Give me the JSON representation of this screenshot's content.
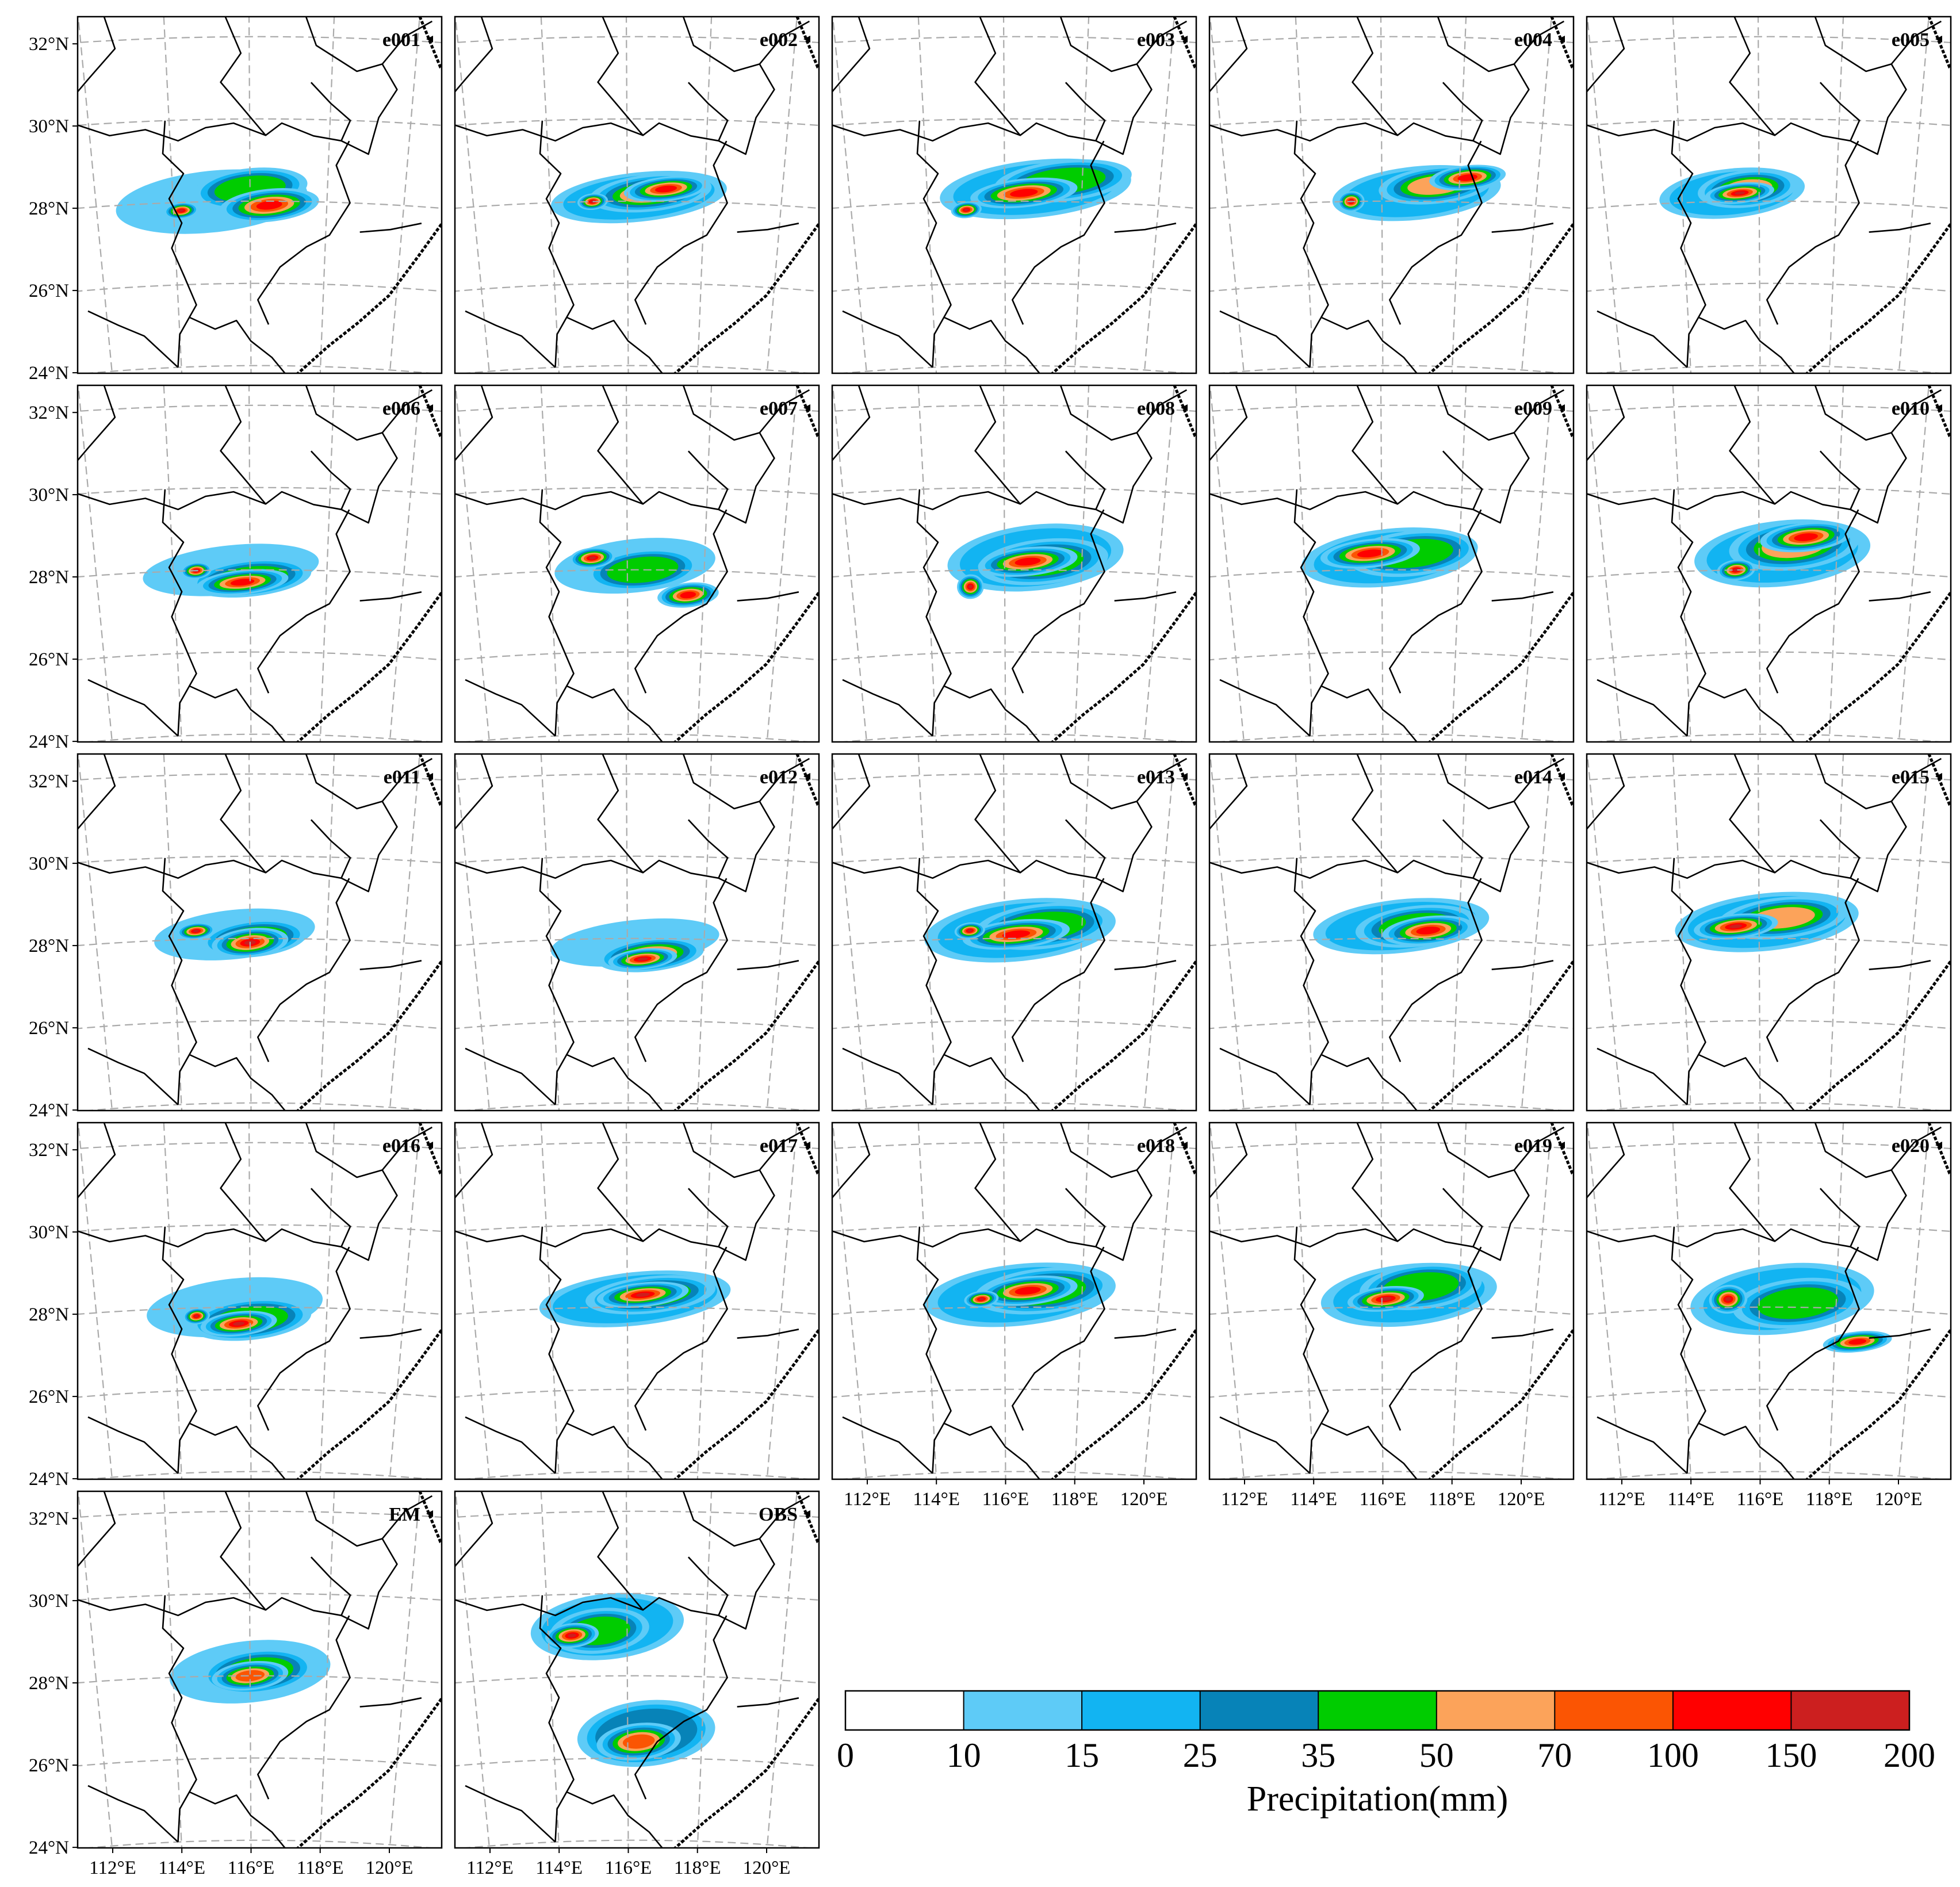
{
  "panels": [
    {
      "label": "e001",
      "blobs": [
        [
          -1,
          0,
          5,
          1.5,
          0.1
        ],
        [
          0,
          0.3,
          3,
          1,
          0.6
        ],
        [
          0.5,
          -0.1,
          2.6,
          0.8,
          1
        ],
        [
          -1.8,
          -0.2,
          0.9,
          0.4,
          1.4
        ]
      ]
    },
    {
      "label": "e002",
      "blobs": [
        [
          0.3,
          0.1,
          4.6,
          1.2,
          0.2
        ],
        [
          0.6,
          0.2,
          3.2,
          0.9,
          0.8
        ],
        [
          1,
          0.3,
          2.2,
          0.6,
          1
        ],
        [
          -0.9,
          0,
          0.8,
          0.4,
          1.3
        ]
      ]
    },
    {
      "label": "e003",
      "blobs": [
        [
          0.8,
          0.3,
          5,
          1.4,
          0.3
        ],
        [
          1.5,
          0.5,
          3.6,
          1,
          0.6
        ],
        [
          0.5,
          0.2,
          2.8,
          0.7,
          1
        ],
        [
          -1,
          -0.2,
          0.8,
          0.4,
          1.4
        ]
      ]
    },
    {
      "label": "e004",
      "blobs": [
        [
          0.9,
          0.2,
          4.4,
          1.3,
          0.2
        ],
        [
          1.4,
          0.4,
          3,
          0.9,
          0.7
        ],
        [
          2.2,
          0.6,
          2,
          0.6,
          1
        ],
        [
          -0.8,
          0,
          0.7,
          0.5,
          1.4
        ]
      ]
    },
    {
      "label": "e005",
      "blobs": [
        [
          -0.7,
          0.2,
          3.8,
          1.2,
          0.2
        ],
        [
          -0.3,
          0.3,
          2.6,
          0.9,
          0.7
        ],
        [
          -0.5,
          0.2,
          1.8,
          0.5,
          1.2
        ]
      ]
    },
    {
      "label": "e006",
      "blobs": [
        [
          -0.5,
          0,
          4.6,
          1.2,
          0
        ],
        [
          0,
          -0.2,
          3.2,
          0.9,
          0.6
        ],
        [
          -0.2,
          -0.3,
          2.4,
          0.6,
          1
        ],
        [
          -1.4,
          0,
          0.8,
          0.4,
          1.4
        ]
      ]
    },
    {
      "label": "e007",
      "blobs": [
        [
          0.2,
          0.1,
          4.2,
          1.3,
          0.1
        ],
        [
          0.4,
          0,
          3,
          1,
          0.6
        ],
        [
          1.6,
          -0.6,
          1.6,
          0.6,
          1
        ],
        [
          -0.9,
          0.3,
          1.2,
          0.5,
          1.3
        ]
      ]
    },
    {
      "label": "e008",
      "blobs": [
        [
          0.8,
          0.3,
          4.6,
          1.6,
          0.3
        ],
        [
          1,
          0.2,
          3.4,
          1.1,
          0.6
        ],
        [
          0.6,
          0.2,
          2.6,
          0.7,
          1
        ],
        [
          -0.9,
          -0.4,
          0.7,
          0.6,
          1.4
        ]
      ]
    },
    {
      "label": "e009",
      "blobs": [
        [
          0.2,
          0.3,
          4.6,
          1.4,
          0.2
        ],
        [
          0.8,
          0.4,
          3.4,
          1.1,
          0.6
        ],
        [
          -0.3,
          0.4,
          2.6,
          0.7,
          1
        ]
      ]
    },
    {
      "label": "e010",
      "blobs": [
        [
          0.6,
          0.4,
          4.6,
          1.6,
          0.3
        ],
        [
          0.9,
          0.6,
          3.4,
          1.2,
          0.7
        ],
        [
          1.2,
          0.8,
          2.4,
          0.7,
          1
        ],
        [
          -0.6,
          0,
          1,
          0.5,
          1.4
        ]
      ]
    },
    {
      "label": "e011",
      "blobs": [
        [
          -0.4,
          0.1,
          4.2,
          1.2,
          0.1
        ],
        [
          0.1,
          0,
          2.8,
          0.9,
          0.6
        ],
        [
          0,
          -0.1,
          2,
          0.7,
          1.1
        ],
        [
          -1.4,
          0.2,
          1,
          0.4,
          1.4
        ]
      ]
    },
    {
      "label": "e012",
      "blobs": [
        [
          0.2,
          -0.1,
          4.4,
          1.1,
          0.1
        ],
        [
          0.6,
          -0.4,
          2.8,
          0.8,
          0.8
        ],
        [
          0.4,
          -0.5,
          1.8,
          0.5,
          1.3
        ]
      ]
    },
    {
      "label": "e013",
      "blobs": [
        [
          0.4,
          0.2,
          5,
          1.5,
          0.3
        ],
        [
          1,
          0.3,
          3.6,
          1.1,
          0.6
        ],
        [
          0.3,
          0.1,
          2.8,
          0.7,
          1
        ],
        [
          -0.9,
          0.2,
          0.8,
          0.4,
          1.3
        ]
      ]
    },
    {
      "label": "e014",
      "blobs": [
        [
          0.5,
          0.3,
          4.6,
          1.3,
          0.2
        ],
        [
          0.9,
          0.3,
          3.2,
          1,
          0.6
        ],
        [
          1.2,
          0.2,
          2.4,
          0.7,
          1
        ]
      ]
    },
    {
      "label": "e015",
      "blobs": [
        [
          0.2,
          0.4,
          4.8,
          1.4,
          0.3
        ],
        [
          0.6,
          0.5,
          3.4,
          1,
          0.7
        ],
        [
          -0.6,
          0.3,
          2.2,
          0.6,
          1.2
        ]
      ]
    },
    {
      "label": "e016",
      "blobs": [
        [
          -0.4,
          0,
          4.6,
          1.4,
          0.1
        ],
        [
          0,
          -0.3,
          3.2,
          1,
          0.6
        ],
        [
          -0.3,
          -0.4,
          2,
          0.6,
          1.1
        ],
        [
          -1.4,
          -0.2,
          0.7,
          0.4,
          1.4
        ]
      ]
    },
    {
      "label": "e017",
      "blobs": [
        [
          0.2,
          0.2,
          5,
          1.3,
          0.2
        ],
        [
          0.6,
          0.3,
          3.4,
          0.9,
          0.7
        ],
        [
          0.4,
          0.3,
          2.4,
          0.6,
          1.1
        ]
      ]
    },
    {
      "label": "e018",
      "blobs": [
        [
          0.4,
          0.3,
          5,
          1.5,
          0.3
        ],
        [
          1,
          0.4,
          3.6,
          1.1,
          0.6
        ],
        [
          0.6,
          0.4,
          2.6,
          0.7,
          1
        ],
        [
          -0.6,
          0.2,
          0.9,
          0.4,
          1.3
        ]
      ]
    },
    {
      "label": "e019",
      "blobs": [
        [
          0.7,
          0.3,
          4.6,
          1.5,
          0.3
        ],
        [
          1,
          0.5,
          3.2,
          1.1,
          0.6
        ],
        [
          0.1,
          0.2,
          2,
          0.6,
          1.2
        ]
      ]
    },
    {
      "label": "e020",
      "blobs": [
        [
          0.6,
          0.2,
          4.8,
          1.7,
          0.2
        ],
        [
          1,
          0.1,
          3.4,
          1.2,
          0.6
        ],
        [
          2.6,
          -0.8,
          1.8,
          0.5,
          1
        ],
        [
          -0.8,
          0.2,
          1,
          0.7,
          1.3
        ]
      ]
    },
    {
      "label": "EM",
      "blobs": [
        [
          0,
          0.1,
          4.2,
          1.5,
          0.1
        ],
        [
          0.2,
          0.1,
          3,
          1.1,
          0.5
        ],
        [
          0,
          0,
          2,
          0.7,
          0.9
        ]
      ]
    },
    {
      "label": "OBS",
      "blobs": [
        [
          -0.5,
          1.2,
          4,
          1.6,
          0.2
        ],
        [
          -0.7,
          1.1,
          2.6,
          1.1,
          0.6
        ],
        [
          -1.4,
          1,
          1.4,
          0.6,
          1.1
        ],
        [
          0.5,
          -1.4,
          3.6,
          1.6,
          0.4
        ],
        [
          0.3,
          -1.6,
          2.2,
          0.9,
          0.8
        ]
      ]
    }
  ],
  "axes": {
    "lat_ticks": [
      24,
      26,
      28,
      30,
      32
    ],
    "lat_labels": [
      "24°N",
      "26°N",
      "28°N",
      "30°N",
      "32°N"
    ],
    "lon_ticks": [
      112,
      114,
      116,
      118,
      120
    ],
    "lon_labels": [
      "112°E",
      "114°E",
      "116°E",
      "118°E",
      "120°E"
    ],
    "lon_range": [
      111.5,
      121
    ],
    "lat_range": [
      23.8,
      32.5
    ]
  },
  "legend": {
    "title": "Precipitation(mm)",
    "bounds": [
      "0",
      "10",
      "15",
      "25",
      "35",
      "50",
      "70",
      "100",
      "150",
      "200"
    ],
    "colors": [
      "#ffffff",
      "#5ecbf7",
      "#12b4f2",
      "#0783b8",
      "#00cc00",
      "#fca35a",
      "#fb5503",
      "#ff0000",
      "#cc1f1f"
    ]
  },
  "colors": {
    "frame": "#000000",
    "grid": "#aaaaaa",
    "boundary": "#000000"
  }
}
